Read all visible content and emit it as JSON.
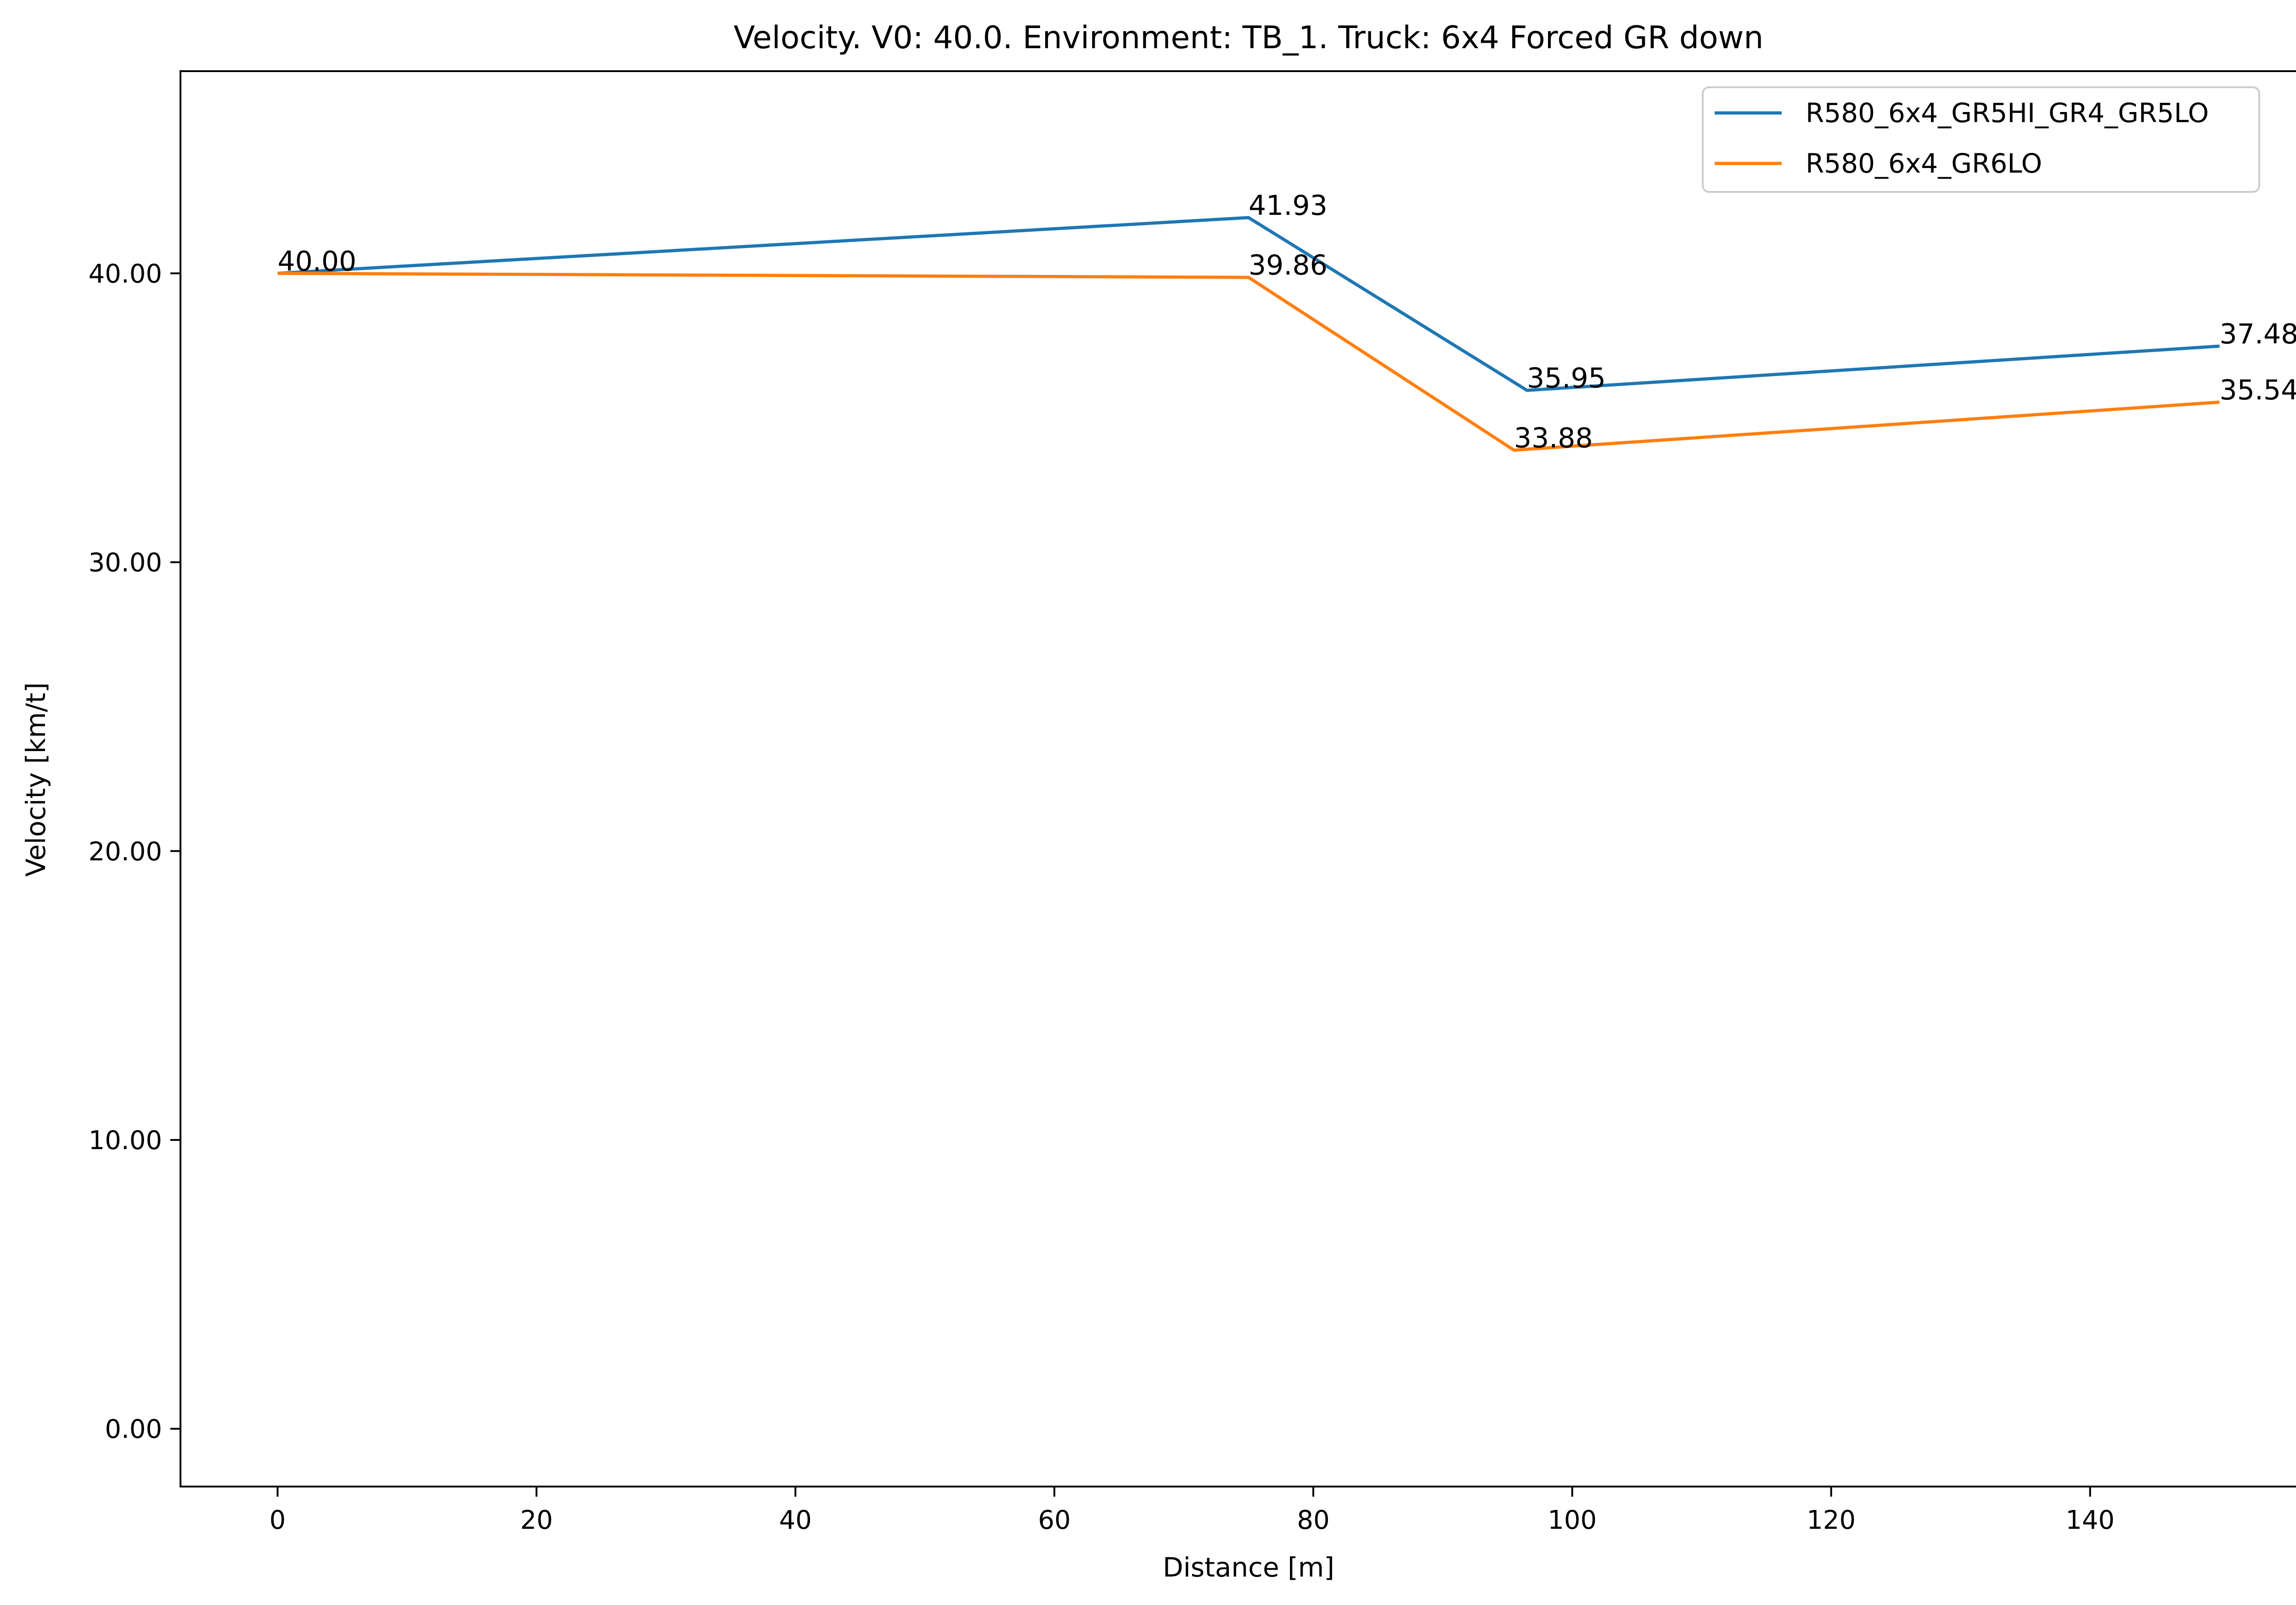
{
  "chart_data": {
    "type": "line",
    "title": "Velocity. V0: 40.0. Environment: TB_1. Truck: 6x4 Forced GR down",
    "xlabel": "Distance [m]",
    "ylabel": "Velocity [km/t]",
    "xlim": [
      -7.5,
      157.5
    ],
    "ylim": [
      -2,
      47
    ],
    "xticks": [
      0,
      20,
      40,
      60,
      80,
      100,
      120,
      140
    ],
    "xtick_labels": [
      "0",
      "20",
      "40",
      "60",
      "80",
      "100",
      "120",
      "140"
    ],
    "yticks": [
      0,
      10,
      20,
      30,
      40
    ],
    "ytick_labels": [
      "0.00",
      "10.00",
      "20.00",
      "30.00",
      "40.00"
    ],
    "grid": false,
    "legend_position": "top-right",
    "series": [
      {
        "name": "R580_6x4_GR5HI_GR4_GR5LO",
        "color": "#1f77b4",
        "points": [
          [
            0,
            40.0
          ],
          [
            75,
            41.93
          ],
          [
            96.5,
            35.95
          ],
          [
            150,
            37.48
          ]
        ],
        "labels": [
          {
            "x": 75,
            "y": 41.93,
            "text": "41.93"
          },
          {
            "x": 96.5,
            "y": 35.95,
            "text": "35.95"
          },
          {
            "x": 150,
            "y": 37.48,
            "text": "37.48"
          }
        ]
      },
      {
        "name": "R580_6x4_GR6LO",
        "color": "#ff7f0e",
        "points": [
          [
            0,
            40.0
          ],
          [
            75,
            39.86
          ],
          [
            95.5,
            33.88
          ],
          [
            150,
            35.54
          ]
        ],
        "labels": [
          {
            "x": 0,
            "y": 40.0,
            "text": "40.00"
          },
          {
            "x": 75,
            "y": 39.86,
            "text": "39.86"
          },
          {
            "x": 95.5,
            "y": 33.88,
            "text": "33.88"
          },
          {
            "x": 150,
            "y": 35.54,
            "text": "35.54"
          }
        ]
      }
    ]
  }
}
